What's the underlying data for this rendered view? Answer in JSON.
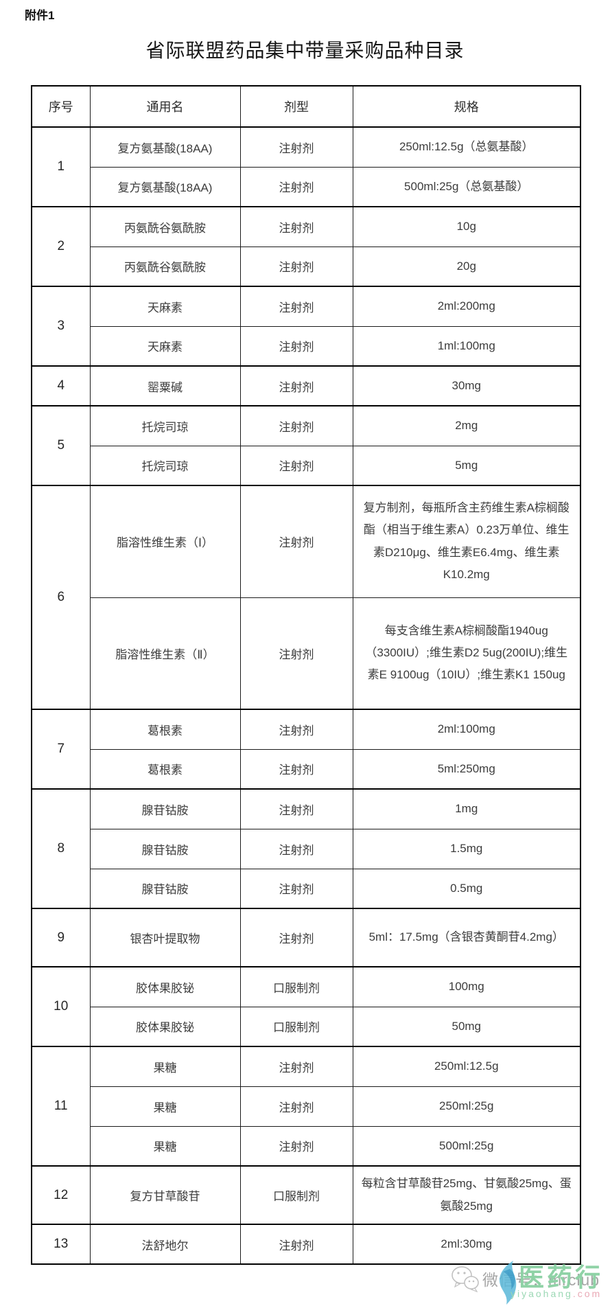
{
  "attachment_label": "附件1",
  "title": "省际联盟药品集中带量采购品种目录",
  "table": {
    "headers": [
      "序号",
      "通用名",
      "剂型",
      "规格"
    ],
    "groups": [
      {
        "no": "1",
        "items": [
          {
            "name": "复方氨基酸(18AA)",
            "form": "注射剂",
            "spec": "250ml:12.5g（总氨基酸）"
          },
          {
            "name": "复方氨基酸(18AA)",
            "form": "注射剂",
            "spec": "500ml:25g（总氨基酸）"
          }
        ]
      },
      {
        "no": "2",
        "items": [
          {
            "name": "丙氨酰谷氨酰胺",
            "form": "注射剂",
            "spec": "10g"
          },
          {
            "name": "丙氨酰谷氨酰胺",
            "form": "注射剂",
            "spec": "20g"
          }
        ]
      },
      {
        "no": "3",
        "items": [
          {
            "name": "天麻素",
            "form": "注射剂",
            "spec": "2ml:200mg"
          },
          {
            "name": "天麻素",
            "form": "注射剂",
            "spec": "1ml:100mg"
          }
        ]
      },
      {
        "no": "4",
        "items": [
          {
            "name": "罂粟碱",
            "form": "注射剂",
            "spec": "30mg"
          }
        ]
      },
      {
        "no": "5",
        "items": [
          {
            "name": "托烷司琼",
            "form": "注射剂",
            "spec": "2mg"
          },
          {
            "name": "托烷司琼",
            "form": "注射剂",
            "spec": "5mg"
          }
        ]
      },
      {
        "no": "6",
        "items": [
          {
            "name": "脂溶性维生素（Ⅰ）",
            "form": "注射剂",
            "spec": "复方制剂，每瓶所含主药维生素A棕榈酸酯（相当于维生素A）0.23万单位、维生素D210μg、维生素E6.4mg、维生素K10.2mg"
          },
          {
            "name": "脂溶性维生素（Ⅱ）",
            "form": "注射剂",
            "spec": "每支含维生素A棕榈酸酯1940ug（3300IU）;维生素D2 5ug(200IU);维生素E 9100ug（10IU）;维生素K1 150ug"
          }
        ]
      },
      {
        "no": "7",
        "items": [
          {
            "name": "葛根素",
            "form": "注射剂",
            "spec": "2ml:100mg"
          },
          {
            "name": "葛根素",
            "form": "注射剂",
            "spec": "5ml:250mg"
          }
        ]
      },
      {
        "no": "8",
        "items": [
          {
            "name": "腺苷钴胺",
            "form": "注射剂",
            "spec": "1mg"
          },
          {
            "name": "腺苷钴胺",
            "form": "注射剂",
            "spec": "1.5mg"
          },
          {
            "name": "腺苷钴胺",
            "form": "注射剂",
            "spec": "0.5mg"
          }
        ]
      },
      {
        "no": "9",
        "items": [
          {
            "name": "银杏叶提取物",
            "form": "注射剂",
            "spec": "5ml：17.5mg（含银杏黄酮苷4.2mg）"
          }
        ]
      },
      {
        "no": "10",
        "items": [
          {
            "name": "胶体果胶铋",
            "form": "口服制剂",
            "spec": "100mg"
          },
          {
            "name": "胶体果胶铋",
            "form": "口服制剂",
            "spec": "50mg"
          }
        ]
      },
      {
        "no": "11",
        "items": [
          {
            "name": "果糖",
            "form": "注射剂",
            "spec": "250ml:12.5g"
          },
          {
            "name": "果糖",
            "form": "注射剂",
            "spec": "250ml:25g"
          },
          {
            "name": "果糖",
            "form": "注射剂",
            "spec": "500ml:25g"
          }
        ]
      },
      {
        "no": "12",
        "items": [
          {
            "name": "复方甘草酸苷",
            "form": "口服制剂",
            "spec": "每粒含甘草酸苷25mg、甘氨酸25mg、蛋氨酸25mg"
          }
        ]
      },
      {
        "no": "13",
        "items": [
          {
            "name": "法舒地尔",
            "form": "注射剂",
            "spec": "2ml:30mg"
          }
        ]
      }
    ]
  },
  "watermark": {
    "wechat_label": "微信号：mrclub",
    "brand": "医药行",
    "domain_green": "yiyaohang",
    "domain_pink": ".com",
    "brand_color": "#8fd2a6",
    "domain_green_color": "#9bd8b4",
    "domain_pink_color": "#e9aab6",
    "swirl_color": "#59b7d8",
    "wechat_text_color": "#6f6f6f"
  }
}
